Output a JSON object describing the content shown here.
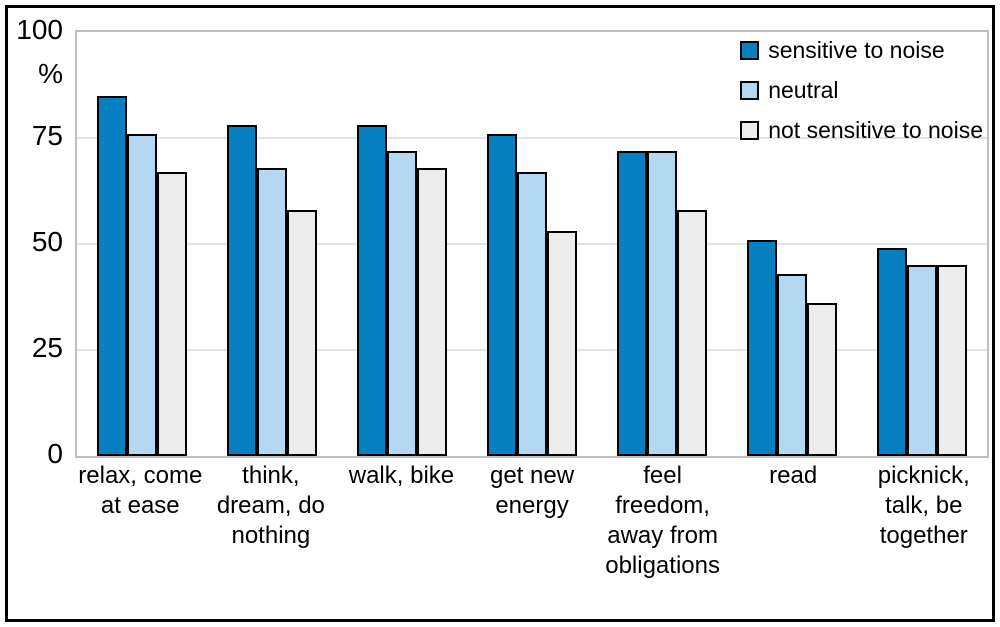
{
  "chart_data": {
    "type": "bar",
    "title": "",
    "xlabel": "",
    "ylabel": "%",
    "ylim": [
      0,
      100
    ],
    "yticks": [
      0,
      25,
      50,
      75,
      100
    ],
    "grid": true,
    "legend_position": "top-right",
    "categories": [
      "relax, come at ease",
      "think, dream, do nothing",
      "walk, bike",
      "get new energy",
      "feel freedom, away from obligations",
      "read",
      "picknick, talk, be together"
    ],
    "category_label_lines": [
      [
        "relax, come",
        "at ease"
      ],
      [
        "think,",
        "dream, do",
        "nothing"
      ],
      [
        "walk, bike"
      ],
      [
        "get new",
        "energy"
      ],
      [
        "feel",
        "freedom,",
        "away from",
        "obligations"
      ],
      [
        "read"
      ],
      [
        "picknick,",
        "talk, be",
        "together"
      ]
    ],
    "series": [
      {
        "name": "sensitive to noise",
        "color": "#0780c2",
        "values": [
          85,
          78,
          78,
          76,
          72,
          51,
          49
        ]
      },
      {
        "name": "neutral",
        "color": "#b5d8f2",
        "values": [
          76,
          68,
          72,
          67,
          72,
          43,
          45
        ]
      },
      {
        "name": "not sensitive to noise",
        "color": "#ececec",
        "values": [
          67,
          58,
          68,
          53,
          58,
          36,
          45
        ]
      }
    ]
  },
  "styles": {
    "bar_border_color": "#000000",
    "gridline_color": "#e2e2e2",
    "plot_border_color": "#bfbfbf",
    "outer_border_color": "#000000",
    "background_color": "#ffffff"
  }
}
